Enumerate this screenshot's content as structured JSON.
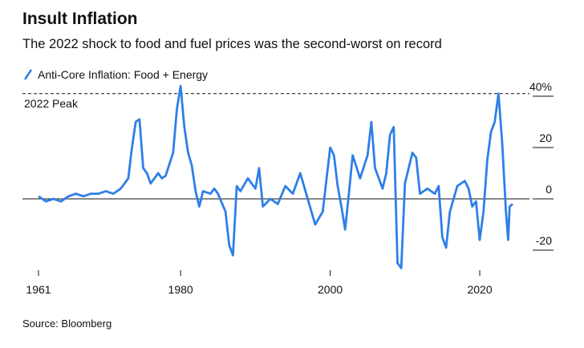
{
  "chart_data": {
    "type": "line",
    "title": "Insult Inflation",
    "subtitle": "The 2022 shock to food and fuel prices was the second-worst on record",
    "annotation": "2022 Peak",
    "annotation_value": 41,
    "source": "Source: Bloomberg",
    "x": [
      1961,
      1962,
      1963,
      1964,
      1965,
      1966,
      1967,
      1968,
      1969,
      1970,
      1971,
      1972,
      1973,
      1973.5,
      1974,
      1974.5,
      1975,
      1975.5,
      1976,
      1977,
      1977.5,
      1978,
      1979,
      1979.5,
      1980,
      1980.5,
      1981,
      1981.5,
      1982,
      1982.5,
      1983,
      1984,
      1984.5,
      1985,
      1986,
      1986.5,
      1987,
      1987.5,
      1988,
      1989,
      1990,
      1990.5,
      1991,
      1992,
      1993,
      1994,
      1995,
      1996,
      1997,
      1998,
      1999,
      2000,
      2000.5,
      2001,
      2001.5,
      2002,
      2002.5,
      2003,
      2004,
      2005,
      2005.5,
      2006,
      2007,
      2007.5,
      2008,
      2008.5,
      2009,
      2009.5,
      2010,
      2011,
      2011.5,
      2012,
      2013,
      2014,
      2014.5,
      2015,
      2015.5,
      2016,
      2017,
      2018,
      2018.5,
      2019,
      2019.5,
      2020,
      2020.5,
      2021,
      2021.5,
      2022,
      2022.5,
      2023,
      2023.5,
      2023.8,
      2024,
      2024.4
    ],
    "series": [
      {
        "name": "Anti-Core Inflation: Food + Energy",
        "color": "#2f7fe6",
        "values": [
          1,
          -1,
          0,
          -1,
          1,
          2,
          1,
          2,
          2,
          3,
          2,
          4,
          8,
          20,
          30,
          31,
          12,
          10,
          6,
          10,
          8,
          9,
          18,
          35,
          44,
          28,
          18,
          13,
          3,
          -3,
          3,
          2,
          4,
          2,
          -5,
          -18,
          -22,
          5,
          3,
          8,
          4,
          12,
          -3,
          0,
          -2,
          5,
          2,
          10,
          0,
          -10,
          -5,
          20,
          17,
          5,
          -3,
          -12,
          2,
          17,
          8,
          17,
          30,
          12,
          4,
          10,
          25,
          28,
          -25,
          -27,
          6,
          18,
          16,
          2,
          4,
          2,
          5,
          -15,
          -19,
          -5,
          5,
          7,
          4,
          -3,
          -1,
          -16,
          -5,
          15,
          26,
          30,
          41,
          22,
          -5,
          -16,
          -3,
          -2
        ]
      }
    ],
    "xlim": [
      1961,
      2024.5
    ],
    "xticks": [
      1961,
      1980,
      2000,
      2020
    ],
    "ylim": [
      -30,
      45
    ],
    "yticks": [
      {
        "value": 40,
        "label": "40%"
      },
      20,
      0,
      -20
    ]
  }
}
